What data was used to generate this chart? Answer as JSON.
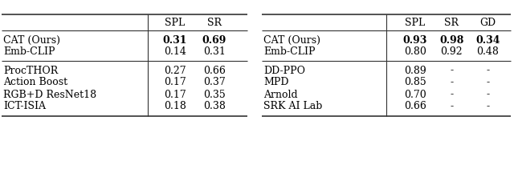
{
  "left_table": {
    "header_row": [
      "",
      "SPL",
      "SR"
    ],
    "group1": [
      {
        "method": "CAT (Ours)",
        "values": [
          "0.31",
          "0.69"
        ],
        "bold": true
      },
      {
        "method": "Emb-CLIP",
        "values": [
          "0.14",
          "0.31"
        ],
        "bold": false
      }
    ],
    "group2": [
      {
        "method": "ProcTHOR",
        "values": [
          "0.27",
          "0.66"
        ],
        "bold": false
      },
      {
        "method": "Action Boost",
        "values": [
          "0.17",
          "0.37"
        ],
        "bold": false
      },
      {
        "method": "RGB+D ResNet18",
        "values": [
          "0.17",
          "0.35"
        ],
        "bold": false
      },
      {
        "method": "ICT-ISIA",
        "values": [
          "0.18",
          "0.38"
        ],
        "bold": false
      }
    ]
  },
  "right_table": {
    "header_row": [
      "",
      "SPL",
      "SR",
      "GD"
    ],
    "group1": [
      {
        "method": "CAT (Ours)",
        "values": [
          "0.93",
          "0.98",
          "0.34"
        ],
        "bold": true
      },
      {
        "method": "Emb-CLIP",
        "values": [
          "0.80",
          "0.92",
          "0.48"
        ],
        "bold": false
      }
    ],
    "group2": [
      {
        "method": "DD-PPO",
        "values": [
          "0.89",
          "-",
          "-"
        ],
        "bold": false
      },
      {
        "method": "MPD",
        "values": [
          "0.85",
          "-",
          "-"
        ],
        "bold": false
      },
      {
        "method": "Arnold",
        "values": [
          "0.70",
          "-",
          "-"
        ],
        "bold": false
      },
      {
        "method": "SRK AI Lab",
        "values": [
          "0.66",
          "-",
          "-"
        ],
        "bold": false
      }
    ]
  },
  "bg_color": "#ffffff",
  "line_color": "#333333",
  "fontsize": 9.0
}
